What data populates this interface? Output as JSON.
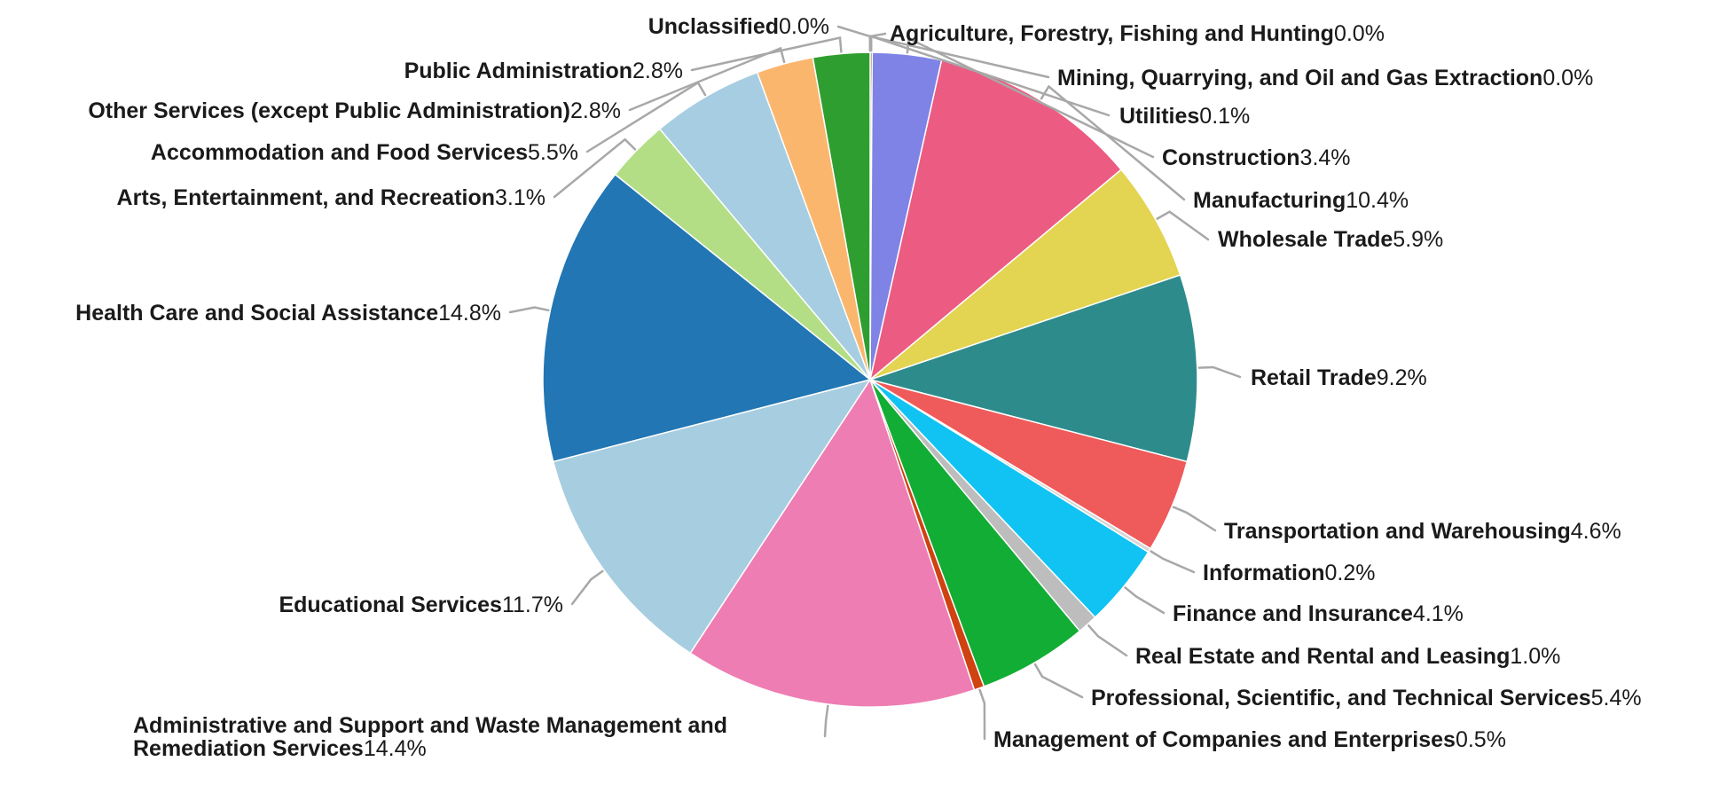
{
  "chart_data": {
    "type": "pie",
    "title": "",
    "slices": [
      {
        "label": "Agriculture, Forestry, Fishing and Hunting",
        "display_value": "0.0%",
        "value": 0.0,
        "color": "#3eb6c8"
      },
      {
        "label": "Mining, Quarrying, and Oil and Gas Extraction",
        "display_value": "0.0%",
        "value": 0.0,
        "color": "#b0b0b0"
      },
      {
        "label": "Utilities",
        "display_value": "0.1%",
        "value": 0.1,
        "color": "#8b5e3c"
      },
      {
        "label": "Construction",
        "display_value": "3.4%",
        "value": 3.4,
        "color": "#7f83e6"
      },
      {
        "label": "Manufacturing",
        "display_value": "10.4%",
        "value": 10.4,
        "color": "#ec5b82"
      },
      {
        "label": "Wholesale Trade",
        "display_value": "5.9%",
        "value": 5.9,
        "color": "#e3d451"
      },
      {
        "label": "Retail Trade",
        "display_value": "9.2%",
        "value": 9.2,
        "color": "#2e8b8b"
      },
      {
        "label": "Transportation and Warehousing",
        "display_value": "4.6%",
        "value": 4.6,
        "color": "#ef5a5a"
      },
      {
        "label": "Information",
        "display_value": "0.2%",
        "value": 0.2,
        "color": "#d6d6d6"
      },
      {
        "label": "Finance and Insurance",
        "display_value": "4.1%",
        "value": 4.1,
        "color": "#11c3f3"
      },
      {
        "label": "Real Estate and Rental and Leasing",
        "display_value": "1.0%",
        "value": 1.0,
        "color": "#bdbdbd"
      },
      {
        "label": "Professional, Scientific, and Technical Services",
        "display_value": "5.4%",
        "value": 5.4,
        "color": "#12ad34"
      },
      {
        "label": "Management of Companies and Enterprises",
        "display_value": "0.5%",
        "value": 0.5,
        "color": "#cf4211"
      },
      {
        "label": "Administrative and Support and Waste Management and Remediation Services",
        "display_value": "14.4%",
        "value": 14.4,
        "color": "#ee7db3"
      },
      {
        "label": "Educational Services",
        "display_value": "11.7%",
        "value": 11.7,
        "color": "#a7cde0"
      },
      {
        "label": "Health Care and Social Assistance",
        "display_value": "14.8%",
        "value": 14.8,
        "color": "#2176b3"
      },
      {
        "label": "Arts, Entertainment, and Recreation",
        "display_value": "3.1%",
        "value": 3.1,
        "color": "#b3de86"
      },
      {
        "label": "Accommodation and Food Services",
        "display_value": "5.5%",
        "value": 5.5,
        "color": "#a6cde1"
      },
      {
        "label": "Other Services (except Public Administration)",
        "display_value": "2.8%",
        "value": 2.8,
        "color": "#fbb66e"
      },
      {
        "label": "Public Administration",
        "display_value": "2.8%",
        "value": 2.8,
        "color": "#2f9e30"
      },
      {
        "label": "Unclassified",
        "display_value": "0.0%",
        "value": 0.0,
        "color": "#d9d9d9"
      }
    ]
  }
}
